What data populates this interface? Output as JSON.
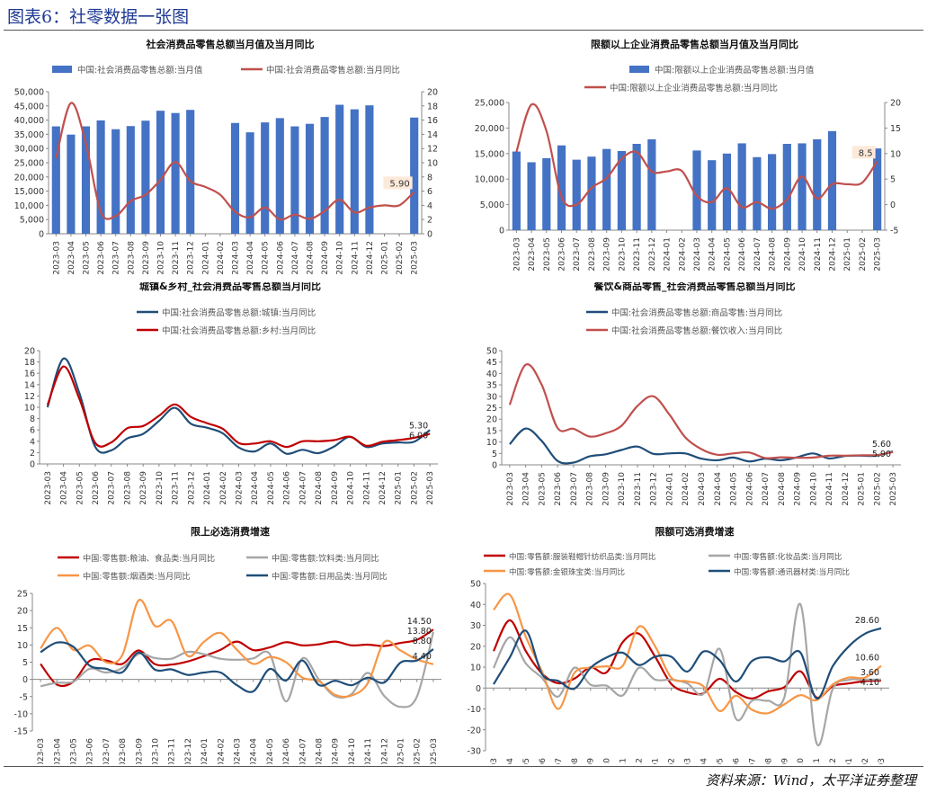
{
  "page_title": "图表6：社零数据一张图",
  "source": "资料来源：Wind，太平洋证券整理",
  "colors": {
    "blue": "#4472c4",
    "red": "#c0504d",
    "darkred": "#c00000",
    "navy": "#1f4e79",
    "orange": "#f79646",
    "gray": "#a6a6a6",
    "label_bg": "#fde9d9"
  },
  "chart_data": [
    {
      "id": "c1",
      "type": "bar+line",
      "title": "社会消费品零售总额当月值及当月同比",
      "categories": [
        "2023-03",
        "2023-04",
        "2023-05",
        "2023-06",
        "2023-07",
        "2023-08",
        "2023-09",
        "2023-10",
        "2023-11",
        "2023-12",
        "2024-01",
        "2024-02",
        "2024-03",
        "2024-04",
        "2024-05",
        "2024-06",
        "2024-07",
        "2024-08",
        "2024-09",
        "2024-10",
        "2024-11",
        "2024-12",
        "2025-01",
        "2025-02",
        "2025-03"
      ],
      "series": [
        {
          "name": "中国:社会消费品零售总额:当月值",
          "kind": "bar",
          "axis": "left",
          "color": "#4472c4",
          "values": [
            37800,
            34900,
            37800,
            39900,
            36800,
            37900,
            39800,
            43300,
            42500,
            43600,
            null,
            null,
            39000,
            35700,
            39200,
            40700,
            37800,
            38700,
            41100,
            45400,
            43800,
            45200,
            null,
            null,
            40900
          ]
        },
        {
          "name": "中国:社会消费品零售总额:当月同比",
          "kind": "line",
          "axis": "right",
          "color": "#c0504d",
          "values": [
            10.6,
            18.4,
            12.7,
            3.1,
            2.5,
            4.6,
            5.5,
            7.6,
            10.1,
            7.4,
            6.6,
            5.5,
            3.1,
            2.3,
            3.7,
            2.0,
            2.7,
            2.1,
            3.2,
            4.8,
            3.0,
            3.7,
            4.0,
            4.0,
            5.9
          ]
        }
      ],
      "ylim_left": [
        0,
        50000
      ],
      "yticks_left": [
        "0",
        "5,000",
        "10,000",
        "15,000",
        "20,000",
        "25,000",
        "30,000",
        "35,000",
        "40,000",
        "45,000",
        "50,000"
      ],
      "ylim_right": [
        0,
        20
      ],
      "yticks_right": [
        "0",
        "2",
        "4",
        "6",
        "8",
        "10",
        "12",
        "14",
        "16",
        "18",
        "20"
      ],
      "annotations": [
        {
          "text": "5.90",
          "series": 1,
          "index": 24
        }
      ]
    },
    {
      "id": "c2",
      "type": "bar+line",
      "title": "限额以上企业消费品零售总额当月值及当月同比",
      "categories": [
        "2023-03",
        "2023-04",
        "2023-05",
        "2023-06",
        "2023-07",
        "2023-08",
        "2023-09",
        "2023-10",
        "2023-11",
        "2023-12",
        "2024-01",
        "2024-02",
        "2024-03",
        "2024-04",
        "2024-05",
        "2024-06",
        "2024-07",
        "2024-08",
        "2024-09",
        "2024-10",
        "2024-11",
        "2024-12",
        "2025-01",
        "2025-02",
        "2025-03"
      ],
      "series": [
        {
          "name": "中国:限额以上企业消费品零售总额:当月值",
          "kind": "bar",
          "axis": "left",
          "color": "#4472c4",
          "values": [
            15400,
            13300,
            14100,
            16600,
            13800,
            14400,
            15900,
            15500,
            16900,
            17800,
            null,
            null,
            15600,
            13700,
            15000,
            17000,
            14300,
            14900,
            16900,
            17000,
            17800,
            19400,
            null,
            null,
            16000
          ]
        },
        {
          "name": "中国:限额以上企业消费品零售总额:当月同比",
          "kind": "line",
          "axis": "right",
          "color": "#c0504d",
          "values": [
            10.3,
            19.6,
            14.4,
            1.5,
            0.0,
            3.3,
            5.2,
            9.0,
            10.3,
            6.5,
            6.5,
            6.6,
            1.7,
            0.5,
            3.2,
            -0.5,
            0.5,
            -0.8,
            1.0,
            5.5,
            1.2,
            4.0,
            4.0,
            4.3,
            8.5
          ]
        }
      ],
      "ylim_left": [
        0,
        25000
      ],
      "yticks_left": [
        "0",
        "5,000",
        "10,000",
        "15,000",
        "20,000",
        "25,000"
      ],
      "ylim_right": [
        -5,
        20
      ],
      "yticks_right": [
        "-5",
        "0",
        "5",
        "10",
        "15",
        "20"
      ],
      "annotations": [
        {
          "text": "8.5",
          "series": 1,
          "index": 24
        }
      ]
    },
    {
      "id": "c3",
      "type": "line",
      "title": "城镇&乡村_社会消费品零售总额当月同比",
      "categories": [
        "2023-03",
        "2023-04",
        "2023-05",
        "2023-06",
        "2023-07",
        "2023-08",
        "2023-09",
        "2023-10",
        "2023-11",
        "2023-12",
        "2024-01",
        "2024-02",
        "2024-03",
        "2024-04",
        "2024-05",
        "2024-06",
        "2024-07",
        "2024-08",
        "2024-09",
        "2024-10",
        "2024-11",
        "2024-12",
        "2025-01",
        "2025-02",
        "2025-03"
      ],
      "series": [
        {
          "name": "中国:社会消费品零售总额:城镇:当月同比",
          "color": "#1f4e79",
          "values": [
            10.0,
            18.6,
            12.5,
            3.0,
            2.4,
            4.5,
            5.3,
            7.6,
            9.9,
            7.1,
            6.4,
            5.4,
            2.9,
            2.2,
            3.6,
            1.8,
            2.5,
            1.9,
            3.1,
            4.8,
            3.0,
            3.6,
            3.8,
            3.9,
            6.0
          ]
        },
        {
          "name": "中国:社会消费品零售总额:乡村:当月同比",
          "color": "#c00000",
          "values": [
            10.4,
            17.2,
            11.5,
            3.7,
            3.8,
            6.3,
            6.7,
            8.5,
            10.5,
            8.3,
            7.2,
            6.2,
            3.7,
            3.6,
            4.0,
            3.0,
            4.0,
            4.0,
            4.2,
            4.8,
            3.2,
            3.9,
            4.2,
            4.6,
            5.3
          ]
        }
      ],
      "ylim": [
        0,
        20
      ],
      "yticks": [
        "0",
        "2",
        "4",
        "6",
        "8",
        "10",
        "12",
        "14",
        "16",
        "18",
        "20"
      ],
      "annotations": [
        {
          "text": "5.30",
          "series": 1,
          "index": 24
        },
        {
          "text": "6.00",
          "series": 0,
          "index": 24
        }
      ]
    },
    {
      "id": "c4",
      "type": "line",
      "title": "餐饮&商品零售_社会消费品零售总额当月同比",
      "categories": [
        "2023-03",
        "2023-04",
        "2023-05",
        "2023-06",
        "2023-07",
        "2023-08",
        "2023-09",
        "2023-10",
        "2023-11",
        "2023-12",
        "2024-01",
        "2024-02",
        "2024-03",
        "2024-04",
        "2024-05",
        "2024-06",
        "2024-07",
        "2024-08",
        "2024-09",
        "2024-10",
        "2024-11",
        "2024-12",
        "2025-01",
        "2025-02",
        "2025-03"
      ],
      "series": [
        {
          "name": "中国:社会消费品零售总额:商品零售:当月同比",
          "color": "#1f4e79",
          "values": [
            9.0,
            15.9,
            10.5,
            1.7,
            1.0,
            3.7,
            4.6,
            6.5,
            8.0,
            4.8,
            5.0,
            5.0,
            2.7,
            2.0,
            3.2,
            1.5,
            2.7,
            2.0,
            3.3,
            5.0,
            2.8,
            3.9,
            4.0,
            4.0,
            5.9
          ]
        },
        {
          "name": "中国:社会消费品零售总额:餐饮收入:当月同比",
          "color": "#c0504d",
          "values": [
            26.3,
            43.8,
            35.1,
            16.1,
            15.8,
            12.4,
            13.8,
            17.1,
            25.8,
            30.0,
            22.0,
            12.0,
            6.9,
            4.4,
            5.0,
            5.4,
            3.0,
            3.3,
            3.1,
            3.2,
            4.0,
            4.0,
            4.2,
            4.3,
            5.6
          ]
        }
      ],
      "ylim": [
        0,
        50
      ],
      "yticks": [
        "0",
        "5",
        "10",
        "15",
        "20",
        "25",
        "30",
        "35",
        "40",
        "45",
        "50"
      ],
      "annotations": [
        {
          "text": "5.60",
          "series": 1,
          "index": 24
        },
        {
          "text": "5.90",
          "series": 0,
          "index": 24
        }
      ]
    },
    {
      "id": "c5",
      "type": "line",
      "title": "限上必选消费增速",
      "categories": [
        "2023-03",
        "2023-04",
        "2023-05",
        "2023-06",
        "2023-07",
        "2023-08",
        "2023-09",
        "2023-10",
        "2023-11",
        "2023-12",
        "2024-01",
        "2024-02",
        "2024-03",
        "2024-04",
        "2024-05",
        "2024-06",
        "2024-07",
        "2024-08",
        "2024-09",
        "2024-10",
        "2024-11",
        "2024-12",
        "2025-01",
        "2025-02",
        "2025-03"
      ],
      "series": [
        {
          "name": "中国:零售额:粮油、食品类:当月同比",
          "color": "#c00000",
          "values": [
            4.5,
            -1.5,
            -0.7,
            5.4,
            5.5,
            4.5,
            8.4,
            4.4,
            4.3,
            5.2,
            6.8,
            8.6,
            11.0,
            8.5,
            9.3,
            10.8,
            9.9,
            10.2,
            11.0,
            9.9,
            10.1,
            9.7,
            10.6,
            11.5,
            14.5
          ]
        },
        {
          "name": "中国:零售额:饮料类:当月同比",
          "color": "#a6a6a6",
          "values": [
            -2.0,
            -1.0,
            -0.7,
            3.1,
            2.0,
            3.3,
            7.4,
            6.2,
            6.0,
            8.0,
            7.3,
            6.0,
            5.7,
            6.1,
            7.4,
            -6.4,
            6.1,
            0.0,
            -4.9,
            -4.3,
            1.9,
            -4.8,
            -8.0,
            -5.0,
            13.8
          ]
        },
        {
          "name": "中国:零售额:烟酒类:当月同比",
          "color": "#f79646",
          "values": [
            9.0,
            15.0,
            8.6,
            9.8,
            5.0,
            7.1,
            23.0,
            15.5,
            17.0,
            6.8,
            11.0,
            13.5,
            8.6,
            4.5,
            6.5,
            5.0,
            0.5,
            -0.5,
            -4.5,
            -4.7,
            -1.1,
            10.8,
            8.4,
            5.8,
            4.4
          ]
        },
        {
          "name": "中国:零售额:日用品类:当月同比",
          "color": "#1f4e79",
          "values": [
            7.9,
            10.7,
            9.5,
            4.0,
            3.1,
            2.1,
            7.8,
            2.8,
            2.9,
            1.3,
            2.0,
            2.0,
            -1.7,
            -3.5,
            3.0,
            -0.3,
            5.5,
            -1.6,
            -0.4,
            -1.7,
            0.5,
            -0.9,
            4.9,
            5.5,
            8.8
          ]
        }
      ],
      "ylim": [
        -15,
        25
      ],
      "yticks": [
        "-15",
        "-10",
        "-5",
        "0",
        "5",
        "10",
        "15",
        "20",
        "25"
      ],
      "annotations": [
        {
          "text": "14.50",
          "series": 0,
          "index": 24
        },
        {
          "text": "13.80",
          "series": 1,
          "index": 24
        },
        {
          "text": "4.40",
          "series": 2,
          "index": 24
        },
        {
          "text": "8.80",
          "series": 3,
          "index": 24
        }
      ]
    },
    {
      "id": "c6",
      "type": "line",
      "title": "限额可选消费增速",
      "categories": [
        "2023-03",
        "2023-04",
        "2023-05",
        "2023-06",
        "2023-07",
        "2023-08",
        "2023-09",
        "2023-10",
        "2023-11",
        "2023-12",
        "2024-01",
        "2024-02",
        "2024-03",
        "2024-04",
        "2024-05",
        "2024-06",
        "2024-07",
        "2024-08",
        "2024-09",
        "2024-10",
        "2024-11",
        "2024-12",
        "2025-01",
        "2025-02",
        "2025-03"
      ],
      "series": [
        {
          "name": "中国:零售额:服装鞋帽针纺织品类:当月同比",
          "color": "#c00000",
          "values": [
            17.7,
            32.4,
            17.6,
            6.9,
            2.3,
            4.5,
            9.9,
            7.5,
            22.0,
            26.0,
            15.0,
            2.0,
            -2.0,
            -2.5,
            4.4,
            -1.9,
            -5.0,
            -1.6,
            0.4,
            8.0,
            -4.5,
            0.9,
            2.2,
            3.3,
            3.6
          ]
        },
        {
          "name": "中国:零售额:化妆品类:当月同比",
          "color": "#a6a6a6",
          "values": [
            9.6,
            24.3,
            11.7,
            4.8,
            -4.1,
            9.7,
            1.6,
            1.1,
            -3.5,
            9.7,
            4.0,
            4.0,
            2.2,
            -2.7,
            18.7,
            -14.6,
            -6.1,
            -6.1,
            -4.5,
            40.1,
            -26.4,
            -0.4,
            3.9,
            4.0,
            4.1
          ]
        },
        {
          "name": "中国:零售额:金银珠宝类:当月同比",
          "color": "#f79646",
          "values": [
            37.4,
            44.7,
            24.4,
            7.8,
            -10.0,
            7.2,
            9.7,
            10.4,
            10.7,
            29.4,
            20.0,
            5.0,
            3.2,
            0.7,
            -11.0,
            -3.7,
            -10.4,
            -12.0,
            -7.8,
            -3.4,
            -5.8,
            1.7,
            5.0,
            5.0,
            10.6
          ]
        },
        {
          "name": "中国:零售额:通讯器材类:当月同比",
          "color": "#1f4e79",
          "values": [
            1.8,
            14.6,
            27.4,
            6.6,
            3.4,
            -0.3,
            9.6,
            14.6,
            16.9,
            11.0,
            15.0,
            15.0,
            7.9,
            17.5,
            13.3,
            3.1,
            12.9,
            14.7,
            12.7,
            17.0,
            -5.0,
            10.4,
            20.0,
            26.0,
            28.6
          ]
        }
      ],
      "ylim": [
        -30,
        50
      ],
      "yticks": [
        "-30",
        "-20",
        "-10",
        "0",
        "10",
        "20",
        "30",
        "40",
        "50"
      ],
      "annotations": [
        {
          "text": "28.60",
          "series": 3,
          "index": 24
        },
        {
          "text": "10.60",
          "series": 2,
          "index": 24
        },
        {
          "text": "3.60",
          "series": 0,
          "index": 24
        },
        {
          "text": "4.10",
          "series": 1,
          "index": 24
        }
      ]
    }
  ]
}
